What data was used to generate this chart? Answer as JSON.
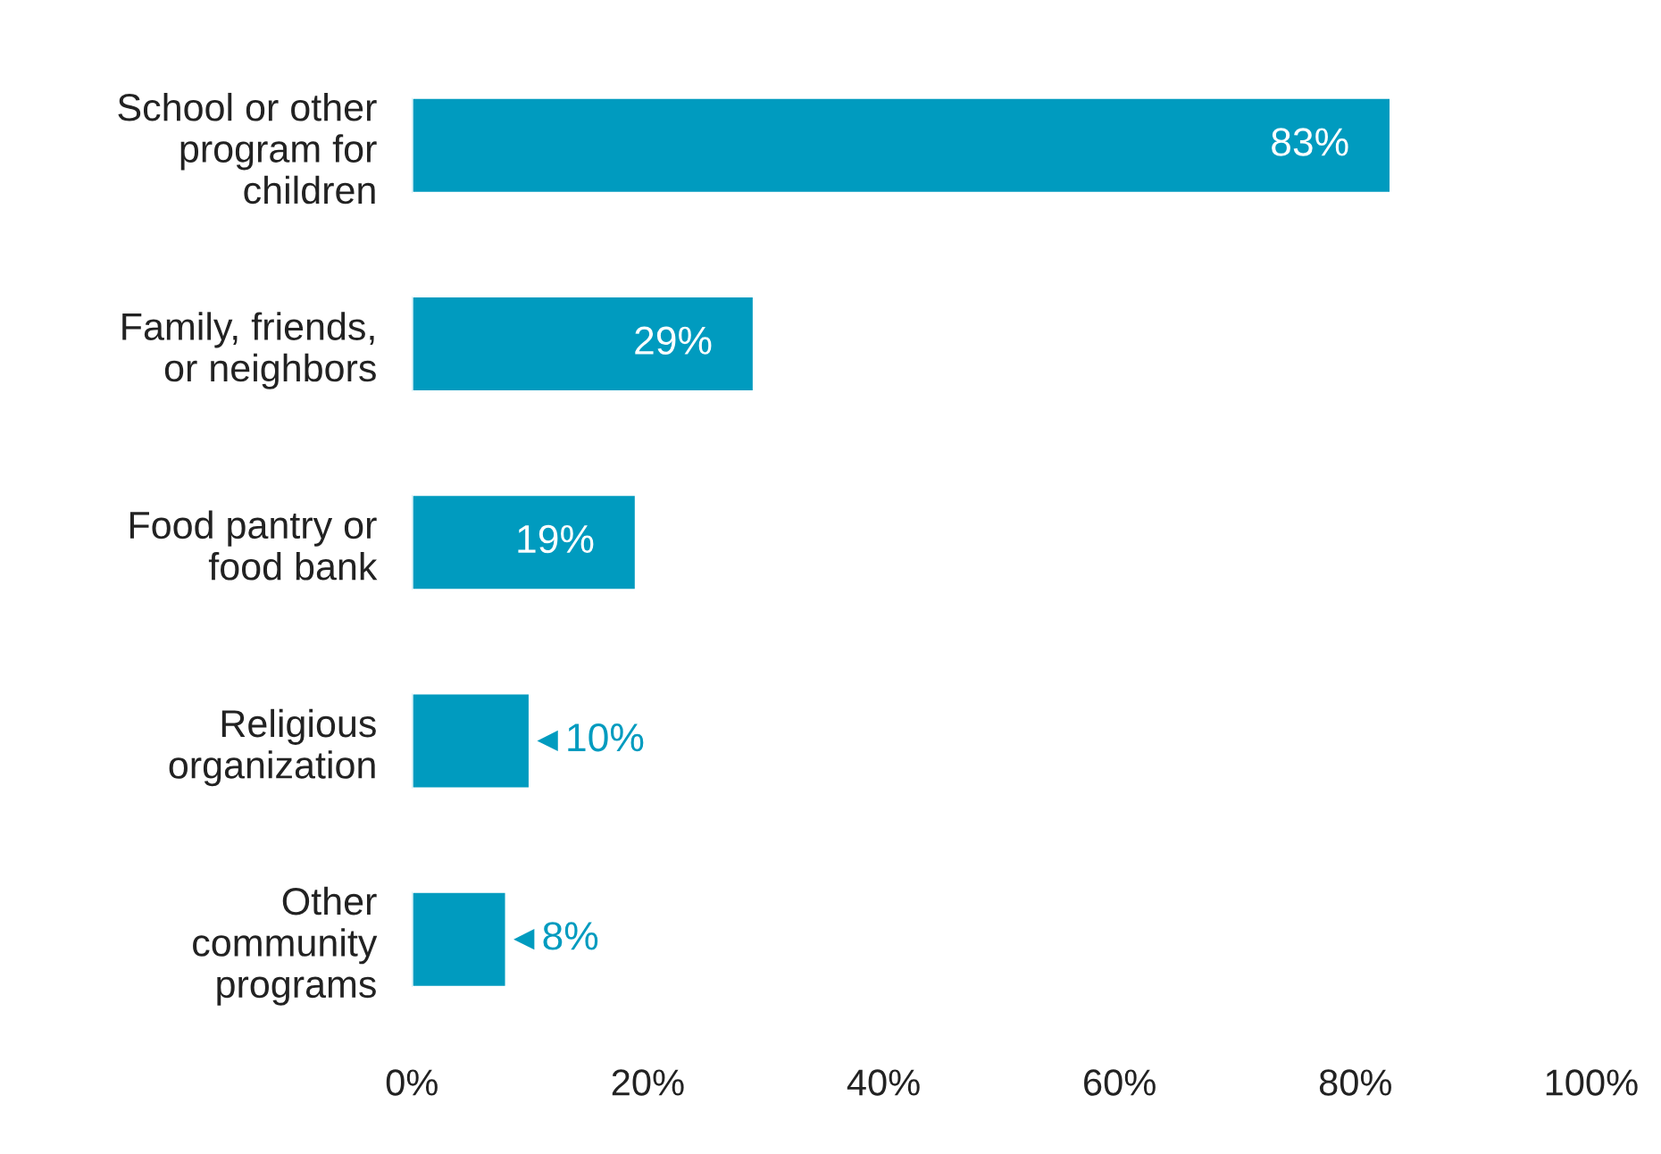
{
  "chart_data": {
    "type": "bar",
    "orientation": "horizontal",
    "categories": [
      "School or other\nprogram for\nchildren",
      "Family, friends,\nor neighbors",
      "Food pantry or\nfood bank",
      "Religious\norganization",
      "Other\ncommunity\nprograms"
    ],
    "values": [
      83,
      29,
      19,
      10,
      8
    ],
    "value_labels": [
      "83%",
      "29%",
      "19%",
      "10%",
      "8%"
    ],
    "color": "#009bbf",
    "xlim": [
      0,
      100
    ],
    "xticks": [
      {
        "value": 0,
        "label": "0%"
      },
      {
        "value": 20,
        "label": "20%"
      },
      {
        "value": 40,
        "label": "40%"
      },
      {
        "value": 60,
        "label": "60%"
      },
      {
        "value": 80,
        "label": "80%"
      },
      {
        "value": 100,
        "label": "100%"
      }
    ],
    "grid": false,
    "legend": false
  }
}
